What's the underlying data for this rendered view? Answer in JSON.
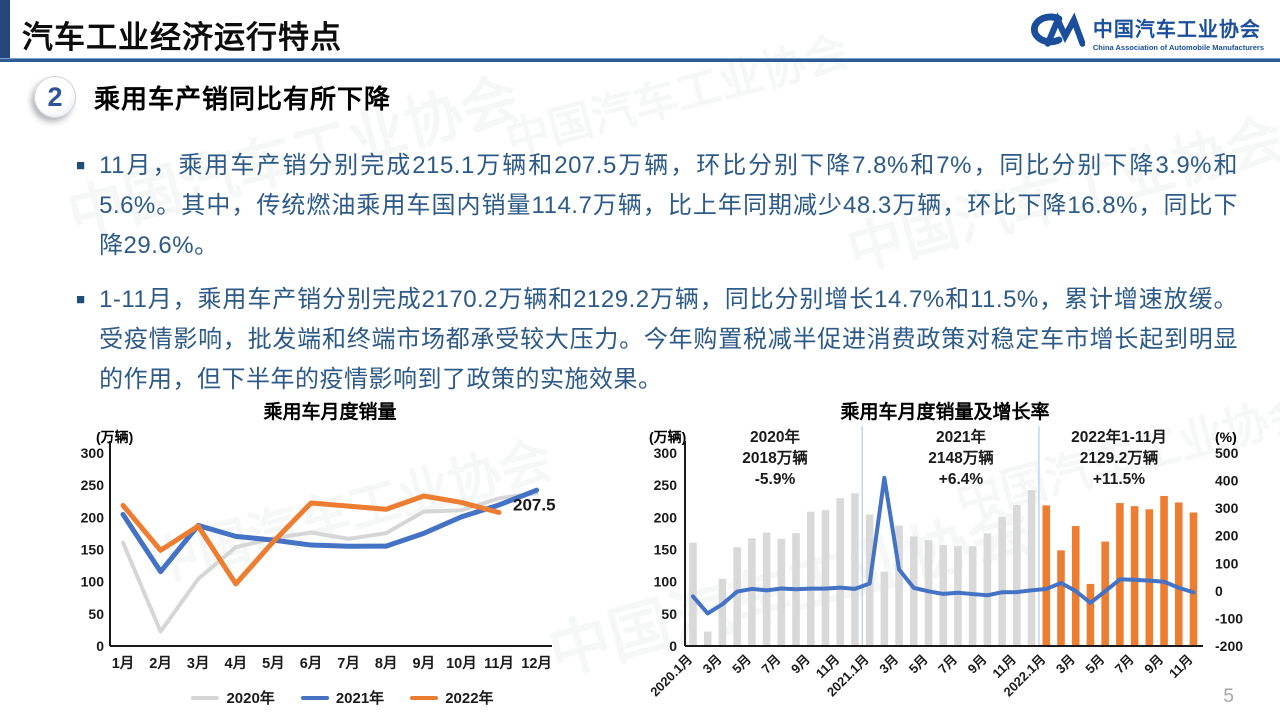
{
  "page": {
    "title": "汽车工业经济运行特点",
    "page_number": "5"
  },
  "logo": {
    "name_cn": "中国汽车工业协会",
    "name_en": "China Association of Automobile Manufacturers",
    "color": "#1b4f9c"
  },
  "watermark": {
    "text": "中国汽车工业协会"
  },
  "section": {
    "number": "2",
    "heading": "乘用车产销同比有所下降"
  },
  "bullets": [
    "11月，乘用车产销分别完成215.1万辆和207.5万辆，环比分别下降7.8%和7%，同比分别下降3.9%和5.6%。其中，传统燃油乘用车国内销量114.7万辆，比上年同期减少48.3万辆，环比下降16.8%，同比下降29.6%。",
    "1-11月，乘用车产销分别完成2170.2万辆和2129.2万辆，同比分别增长14.7%和11.5%，累计增速放缓。受疫情影响，批发端和终端市场都承受较大压力。今年购置税减半促进消费政策对稳定车市增长起到明显的作用，但下半年的疫情影响到了政策的实施效果。"
  ],
  "chart_data": [
    {
      "type": "line",
      "title": "乘用车月度销量",
      "unit_label": "(万辆)",
      "categories": [
        "1月",
        "2月",
        "3月",
        "4月",
        "5月",
        "6月",
        "7月",
        "8月",
        "9月",
        "10月",
        "11月",
        "12月"
      ],
      "ylim": [
        0,
        300
      ],
      "yticks": [
        0,
        50,
        100,
        150,
        200,
        250,
        300
      ],
      "grid": false,
      "legend_position": "bottom",
      "series": [
        {
          "name": "2020年",
          "color": "#d6d6d6",
          "values": [
            160.7,
            22.4,
            104.3,
            153.6,
            167.4,
            176.4,
            166.5,
            175.5,
            208.8,
            211.0,
            229.7,
            237.5
          ]
        },
        {
          "name": "2021年",
          "color": "#4472c4",
          "values": [
            204.5,
            115.6,
            187.4,
            170.4,
            164.6,
            156.9,
            155.1,
            155.2,
            175.1,
            200.7,
            219.2,
            242.2
          ]
        },
        {
          "name": "2022年",
          "color": "#ed7d31",
          "values": [
            218.6,
            148.7,
            186.4,
            96.5,
            162.3,
            222.2,
            217.4,
            212.5,
            233.2,
            223.1,
            207.5
          ]
        }
      ],
      "data_label": {
        "text": "207.5",
        "series_index": 2,
        "month_index": 10
      }
    },
    {
      "type": "bar+line",
      "title": "乘用车月度销量及增长率",
      "left_unit": "(万辆)",
      "right_unit": "(%)",
      "left_ylim": [
        0,
        300
      ],
      "left_yticks": [
        0,
        50,
        100,
        150,
        200,
        250,
        300
      ],
      "right_ylim": [
        -200,
        500
      ],
      "right_yticks": [
        -200,
        -100,
        0,
        100,
        200,
        300,
        400,
        500
      ],
      "x_tick_labels": [
        "2020.1月",
        "3月",
        "5月",
        "7月",
        "9月",
        "11月",
        "2021.1月",
        "3月",
        "5月",
        "7月",
        "9月",
        "11月",
        "2022.1月",
        "3月",
        "5月",
        "7月",
        "9月",
        "11月"
      ],
      "bar_groups": [
        {
          "year": "2020",
          "color": "#d9d9d9",
          "values": [
            160.7,
            22.4,
            104.3,
            153.6,
            167.4,
            176.4,
            166.5,
            175.5,
            208.8,
            211.0,
            229.7,
            237.5
          ]
        },
        {
          "year": "2021",
          "color": "#d9d9d9",
          "values": [
            204.5,
            115.6,
            187.4,
            170.4,
            164.6,
            156.9,
            155.1,
            155.2,
            175.1,
            200.7,
            219.2,
            242.2
          ]
        },
        {
          "year": "2022",
          "color": "#ed7d31",
          "values": [
            218.6,
            148.7,
            186.4,
            96.5,
            162.3,
            222.2,
            217.4,
            212.5,
            233.2,
            223.1,
            207.5
          ]
        }
      ],
      "line": {
        "name": "同比增长率",
        "color": "#4472c4",
        "values": [
          -20.2,
          -81.7,
          -48.4,
          -2.6,
          7.0,
          1.8,
          8.5,
          6.0,
          8.0,
          8.0,
          11.6,
          7.2,
          26.8,
          410.0,
          77.4,
          10.8,
          -1.7,
          -11.1,
          -7.0,
          -11.6,
          -16.1,
          -4.9,
          -4.7,
          2.0,
          6.9,
          28.6,
          -0.6,
          -43.4,
          -1.4,
          41.6,
          40.2,
          36.9,
          33.2,
          11.2,
          -5.6
        ]
      },
      "separators_after_index": [
        11,
        23
      ],
      "separator_color": "#bdd7ee",
      "annotations": [
        {
          "lines": [
            "2020年",
            "2018万辆",
            "-5.9%"
          ],
          "highlight": "-5.9%",
          "highlight_color": "#ff0000"
        },
        {
          "lines": [
            "2021年",
            "2148万辆",
            "+6.4%"
          ],
          "highlight": "",
          "highlight_color": ""
        },
        {
          "lines": [
            "2022年1-11月",
            "2129.2万辆",
            "+11.5%"
          ],
          "highlight": "",
          "highlight_color": ""
        }
      ]
    }
  ]
}
